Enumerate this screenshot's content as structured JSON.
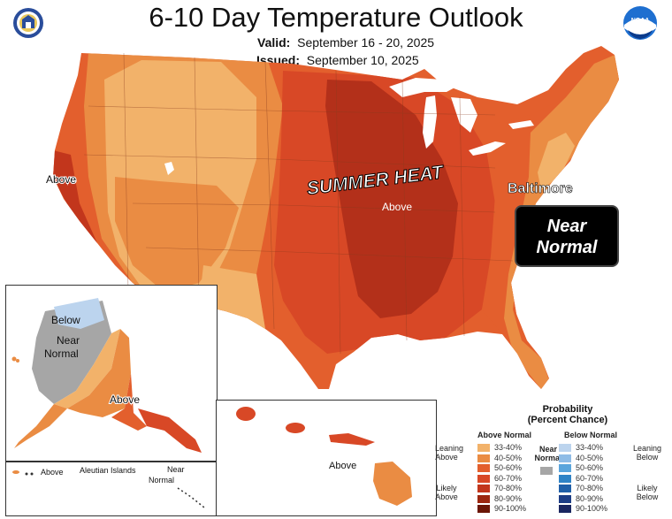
{
  "header": {
    "title": "6-10 Day Temperature Outlook",
    "valid_label": "Valid:",
    "valid_value": "September 16 - 20, 2025",
    "issued_label": "Issued:",
    "issued_value": "September 10, 2025"
  },
  "logos": {
    "left": "doc-seal",
    "right": "noaa-logo",
    "noaa_text": "NOAA"
  },
  "map_labels": {
    "west_above": "Above",
    "summer_heat": "SUMMER HEAT",
    "central_above": "Above",
    "baltimore": "Baltimore",
    "near_normal": "Near Normal",
    "near_line1": "Near",
    "near_line2": "Normal"
  },
  "alaska_labels": {
    "below": "Below",
    "near": "Near",
    "normal": "Normal",
    "above": "Above"
  },
  "aleutian_labels": {
    "above": "Above",
    "islands": "Aleutian Islands",
    "near": "Near",
    "normal": "Normal"
  },
  "hawaii_labels": {
    "above": "Above"
  },
  "legend": {
    "title": "Probability",
    "subtitle": "(Percent Chance)",
    "above_header": "Above Normal",
    "below_header": "Below Normal",
    "leaning_above": "Leaning Above",
    "likely_above": "Likely Above",
    "leaning_below": "Leaning Below",
    "likely_below": "Likely Below",
    "near_normal_1": "Near",
    "near_normal_2": "Normal",
    "near_color": "#a6a6a6",
    "above": [
      {
        "label": "33-40%",
        "color": "#f2b26a"
      },
      {
        "label": "40-50%",
        "color": "#ea8c43"
      },
      {
        "label": "50-60%",
        "color": "#e35f2d"
      },
      {
        "label": "60-70%",
        "color": "#d84826"
      },
      {
        "label": "70-80%",
        "color": "#c2361c"
      },
      {
        "label": "80-90%",
        "color": "#9c2710"
      },
      {
        "label": "90-100%",
        "color": "#6b1606"
      }
    ],
    "below": [
      {
        "label": "33-40%",
        "color": "#bcd4ee"
      },
      {
        "label": "40-50%",
        "color": "#8fbce6"
      },
      {
        "label": "50-60%",
        "color": "#5aa5dc"
      },
      {
        "label": "60-70%",
        "color": "#2f83c6"
      },
      {
        "label": "70-80%",
        "color": "#1f5fa8"
      },
      {
        "label": "80-90%",
        "color": "#1c3d86"
      },
      {
        "label": "90-100%",
        "color": "#1a2660"
      }
    ]
  }
}
